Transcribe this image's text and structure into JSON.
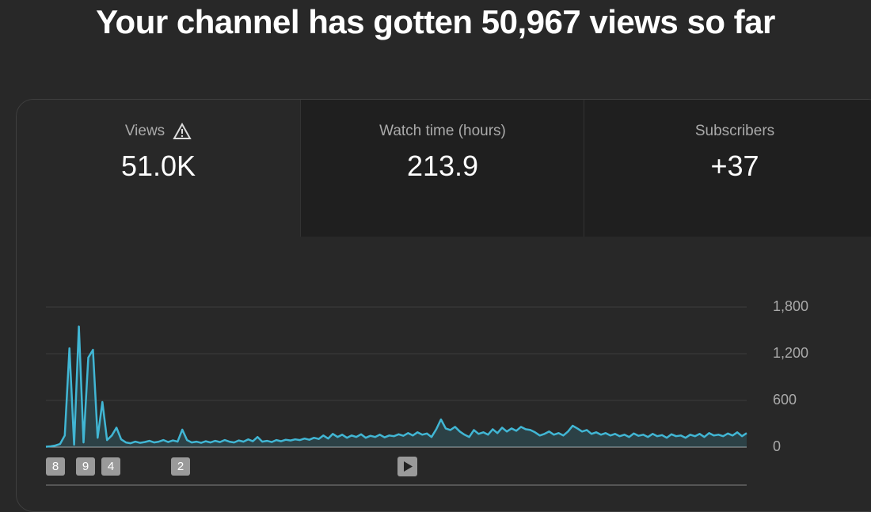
{
  "header": {
    "title": "Your channel has gotten 50,967 views so far"
  },
  "tabs": [
    {
      "label": "Views",
      "value": "51.0K"
    },
    {
      "label": "Watch time (hours)",
      "value": "213.9"
    },
    {
      "label": "Subscribers",
      "value": "+37"
    }
  ],
  "chart_data": {
    "type": "line",
    "color": "#41b6d4",
    "grid": true,
    "ylim": [
      0,
      1800
    ],
    "yticks": [
      0,
      {
        "value": 600,
        "label": "600"
      },
      {
        "value": 1200,
        "label": "1,200"
      },
      {
        "value": 1800,
        "label": "1,800"
      }
    ],
    "annotations": [
      "8",
      "9",
      "4",
      "2"
    ],
    "values": [
      5,
      10,
      20,
      40,
      150,
      1270,
      30,
      1550,
      60,
      1150,
      1250,
      120,
      580,
      90,
      150,
      250,
      100,
      60,
      50,
      70,
      55,
      65,
      80,
      60,
      70,
      90,
      65,
      85,
      70,
      225,
      90,
      60,
      70,
      55,
      75,
      60,
      80,
      65,
      90,
      70,
      60,
      85,
      70,
      100,
      75,
      130,
      70,
      80,
      65,
      90,
      75,
      95,
      85,
      100,
      90,
      110,
      95,
      120,
      105,
      150,
      110,
      170,
      130,
      160,
      120,
      150,
      130,
      165,
      120,
      145,
      130,
      160,
      125,
      150,
      140,
      165,
      145,
      180,
      150,
      190,
      160,
      175,
      130,
      230,
      356,
      240,
      220,
      260,
      200,
      160,
      130,
      220,
      170,
      190,
      160,
      230,
      180,
      250,
      200,
      240,
      210,
      260,
      230,
      220,
      190,
      150,
      170,
      200,
      160,
      180,
      150,
      200,
      275,
      240,
      200,
      220,
      170,
      190,
      160,
      180,
      150,
      170,
      140,
      160,
      130,
      175,
      145,
      160,
      130,
      170,
      140,
      155,
      120,
      165,
      140,
      150,
      120,
      160,
      140,
      170,
      130,
      180,
      150,
      160,
      140,
      175,
      150,
      190,
      140,
      180
    ]
  }
}
